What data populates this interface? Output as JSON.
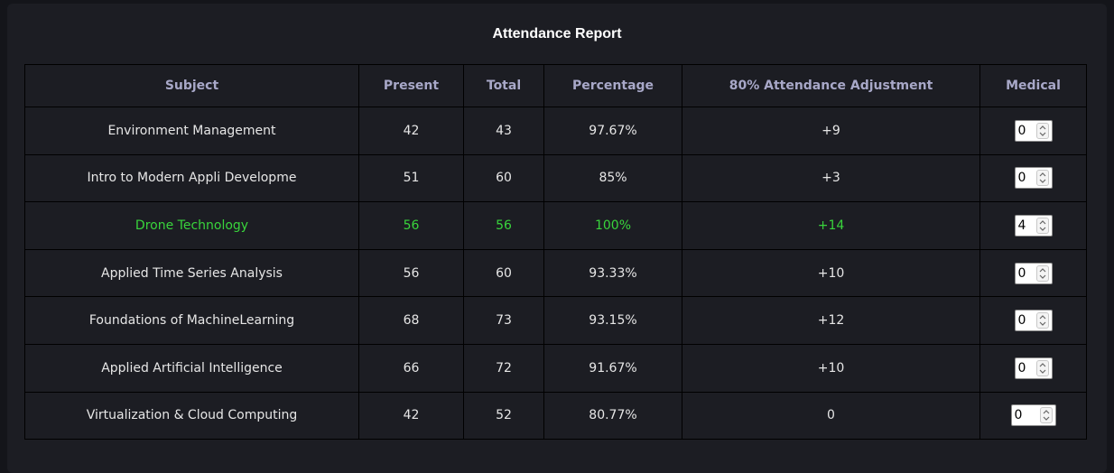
{
  "title": "Attendance Report",
  "columns": {
    "subject": "Subject",
    "present": "Present",
    "total": "Total",
    "percentage": "Percentage",
    "adjustment": "80% Attendance Adjustment",
    "medical": "Medical"
  },
  "colors": {
    "accent_ok": "#39d43c",
    "header_text": "#a8a8c8",
    "panel_bg": "#1c1d23",
    "page_bg": "#14151a"
  },
  "rows": [
    {
      "subject": "Environment Management",
      "present": "42",
      "total": "43",
      "percentage": "97.67%",
      "adjustment": "+9",
      "medical": "0"
    },
    {
      "subject": "Intro to Modern Appli Developme",
      "present": "51",
      "total": "60",
      "percentage": "85%",
      "adjustment": "+3",
      "medical": "0"
    },
    {
      "subject": "Drone Technology",
      "present": "56",
      "total": "56",
      "percentage": "100%",
      "adjustment": "+14",
      "medical": "4"
    },
    {
      "subject": "Applied Time Series Analysis",
      "present": "56",
      "total": "60",
      "percentage": "93.33%",
      "adjustment": "+10",
      "medical": "0"
    },
    {
      "subject": "Foundations of MachineLearning",
      "present": "68",
      "total": "73",
      "percentage": "93.15%",
      "adjustment": "+12",
      "medical": "0"
    },
    {
      "subject": "Applied Artificial Intelligence",
      "present": "66",
      "total": "72",
      "percentage": "91.67%",
      "adjustment": "+10",
      "medical": "0"
    },
    {
      "subject": "Virtualization & Cloud Computing",
      "present": "42",
      "total": "52",
      "percentage": "80.77%",
      "adjustment": "0",
      "medical": "0"
    }
  ]
}
